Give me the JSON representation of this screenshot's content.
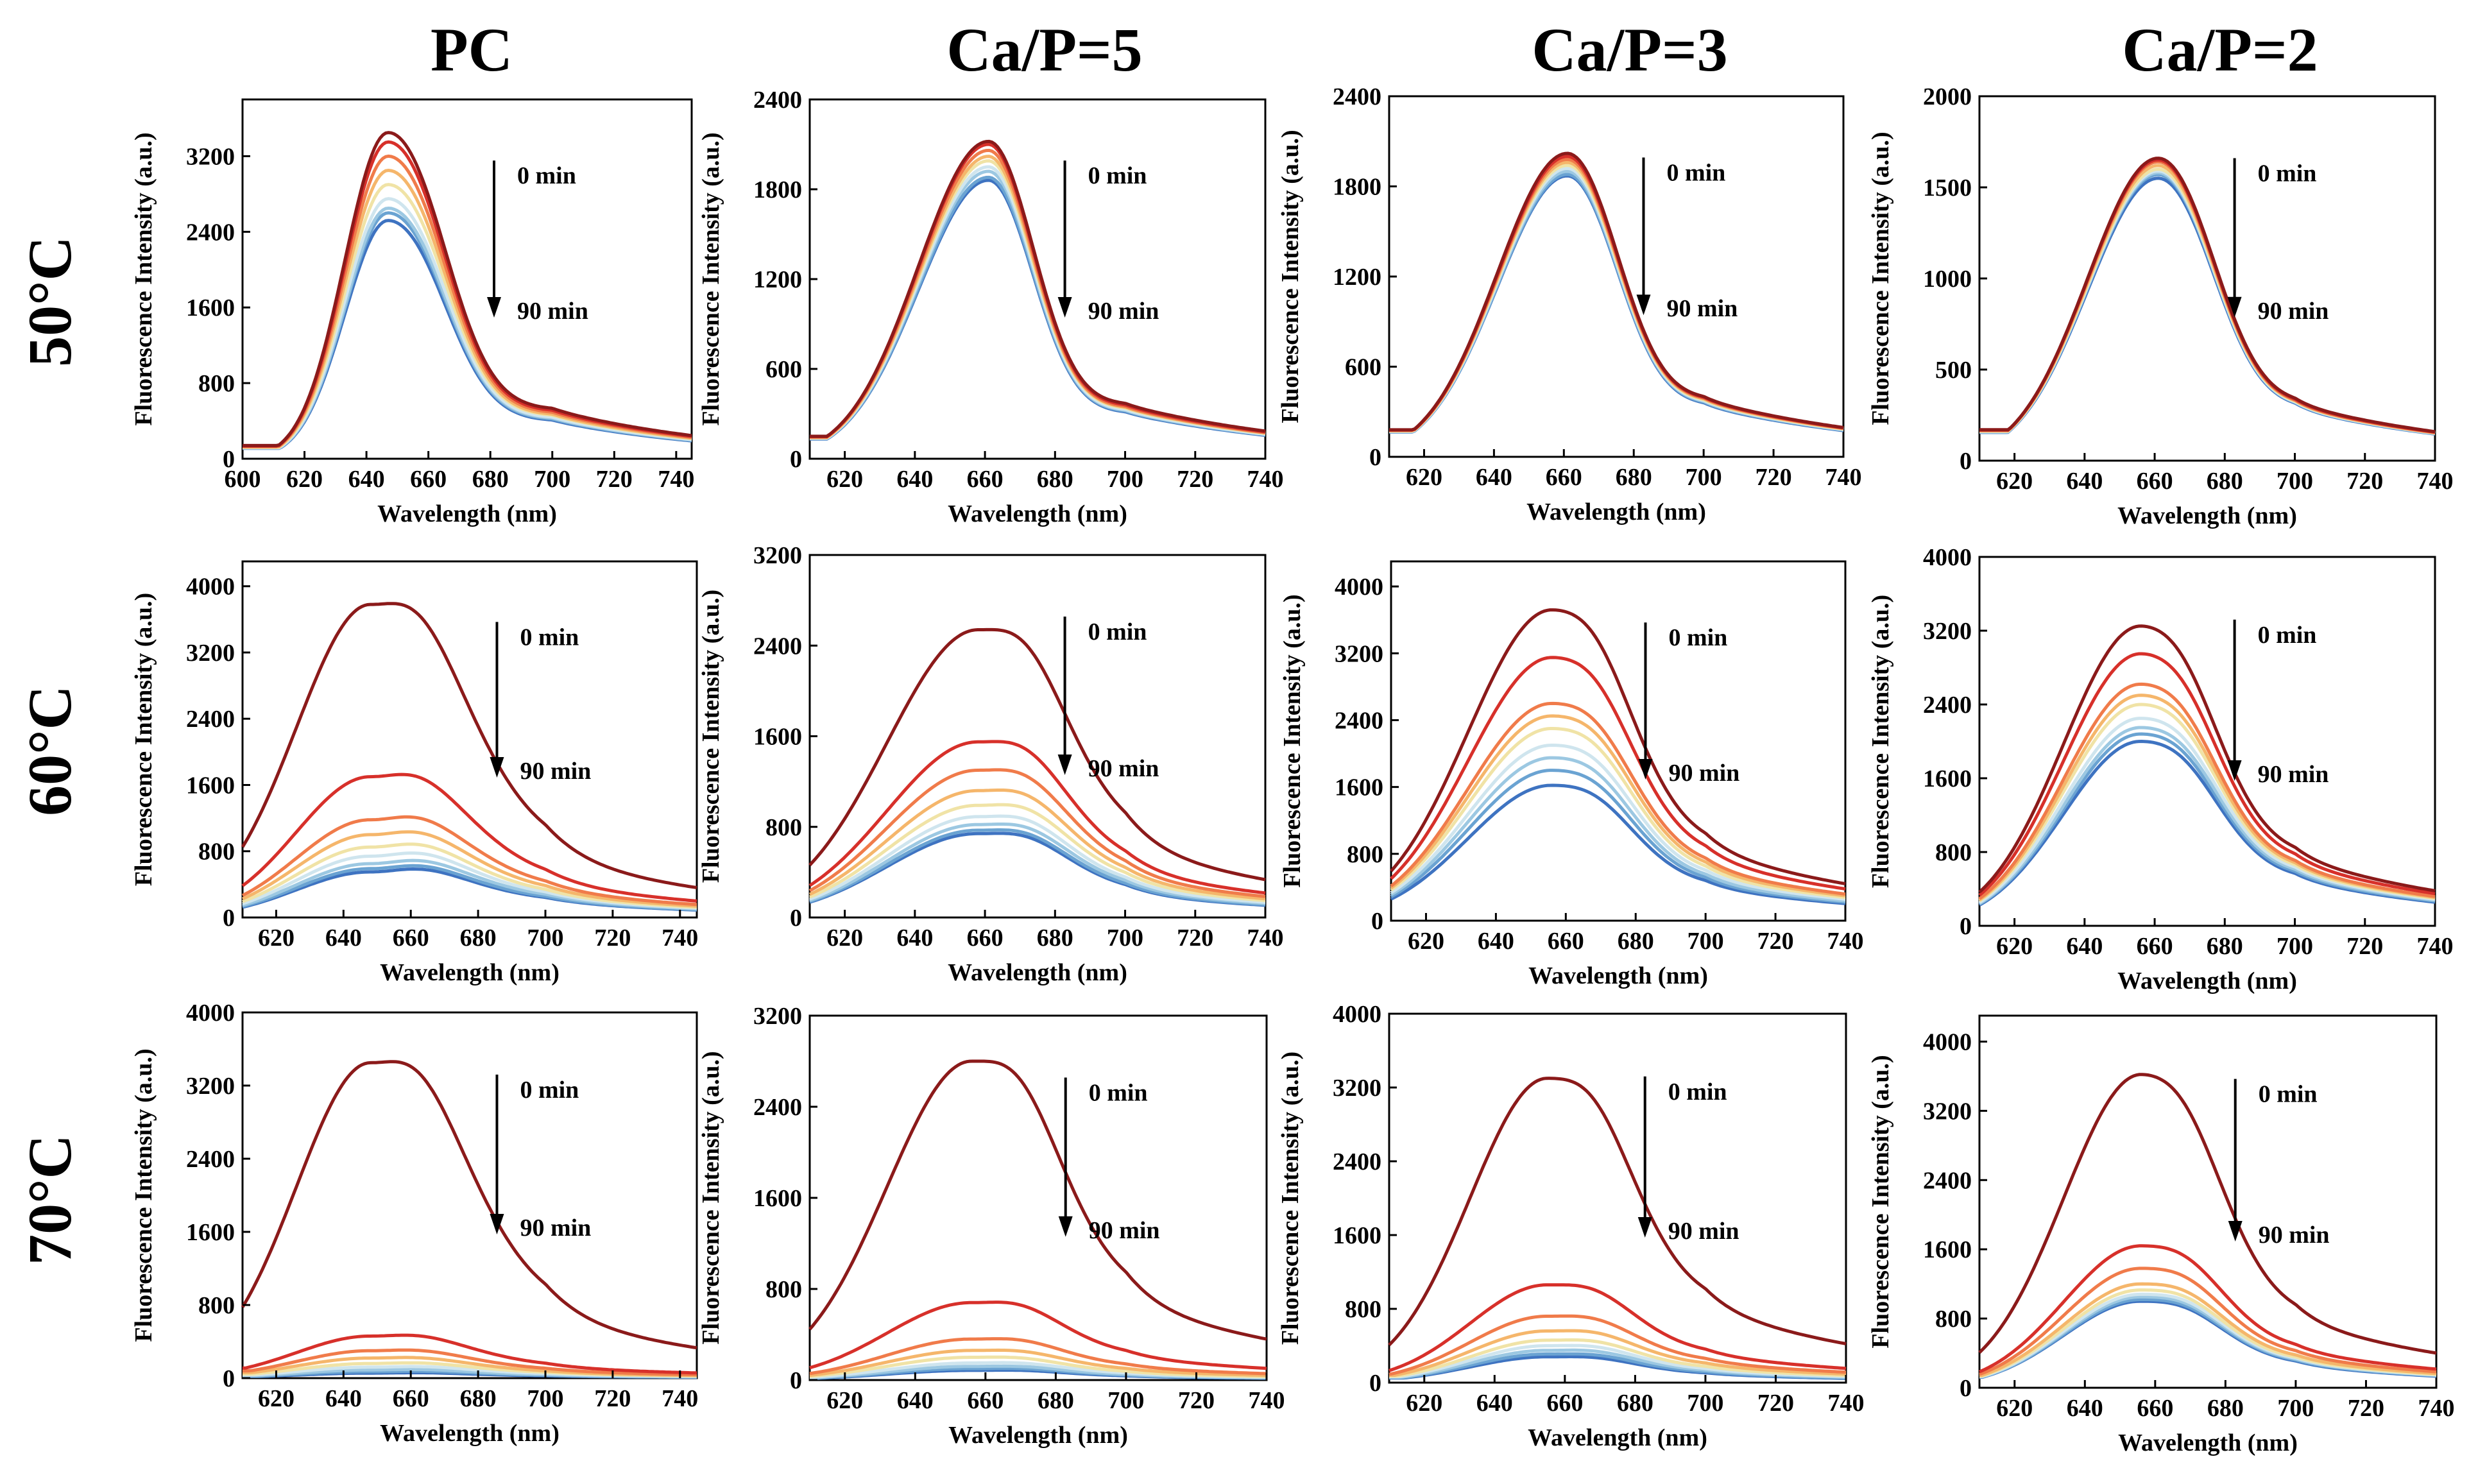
{
  "columns": [
    "PC",
    "Ca/P=5",
    "Ca/P=3",
    "Ca/P=2"
  ],
  "rows": [
    "50°C",
    "60°C",
    "70°C"
  ],
  "series_colors": [
    "#8B1A1A",
    "#D7302A",
    "#F07B4A",
    "#F5B66B",
    "#F0E3A6",
    "#CFE5EE",
    "#9CC8E2",
    "#6AA3D2",
    "#3E73C1"
  ],
  "chart_data": [
    {
      "id": "r1c1",
      "type": "line",
      "title": "",
      "row": "50°C",
      "column": "PC",
      "xlabel": "Wavelength (nm)",
      "ylabel": "Fluorescence Intensity (a.u.)",
      "xlim": [
        600,
        745
      ],
      "ylim": [
        0,
        3800
      ],
      "xticks": [
        600,
        620,
        640,
        660,
        680,
        700,
        720,
        740
      ],
      "yticks": [
        0,
        800,
        1600,
        2400,
        3200
      ],
      "annotation_top": "0 min",
      "annotation_bottom": "90 min",
      "peak_nm": 647,
      "sigma_left": 14,
      "sigma_right": 16,
      "peaks": [
        3450,
        3350,
        3200,
        3050,
        2900,
        2750,
        2650,
        2600,
        2520
      ],
      "tail_700": [
        520,
        500,
        480,
        460,
        450,
        430,
        420,
        410,
        400
      ],
      "base_600": [
        140,
        135,
        130,
        125,
        120,
        118,
        115,
        112,
        110
      ],
      "base_745": [
        90,
        88,
        85,
        82,
        80,
        78,
        76,
        74,
        72
      ]
    },
    {
      "id": "r1c2",
      "type": "line",
      "title": "",
      "row": "50°C",
      "column": "Ca/P=5",
      "xlabel": "Wavelength (nm)",
      "ylabel": "Fluorescence Intensity (a.u.)",
      "xlim": [
        610,
        740
      ],
      "ylim": [
        0,
        2400
      ],
      "xticks": [
        620,
        640,
        660,
        680,
        700,
        720,
        740
      ],
      "yticks": [
        0,
        600,
        1200,
        1800,
        2400
      ],
      "annotation_top": "0 min",
      "annotation_bottom": "90 min",
      "peak_nm": 661,
      "sigma_left": 20,
      "sigma_right": 12,
      "peaks": [
        2120,
        2100,
        2060,
        2020,
        1990,
        1950,
        1920,
        1880,
        1860
      ],
      "tail_700": [
        360,
        350,
        340,
        335,
        330,
        320,
        315,
        310,
        305
      ],
      "base_600": [
        150,
        148,
        145,
        142,
        140,
        138,
        136,
        134,
        132
      ],
      "base_745": [
        110,
        108,
        106,
        104,
        102,
        100,
        98,
        96,
        94
      ]
    },
    {
      "id": "r1c3",
      "type": "line",
      "title": "",
      "row": "50°C",
      "column": "Ca/P=3",
      "xlabel": "Wavelength (nm)",
      "ylabel": "Fluorescence Intensity (a.u.)",
      "xlim": [
        610,
        740
      ],
      "ylim": [
        0,
        2400
      ],
      "xticks": [
        620,
        640,
        660,
        680,
        700,
        720,
        740
      ],
      "yticks": [
        0,
        600,
        1200,
        1800,
        2400
      ],
      "annotation_top": "0 min",
      "annotation_bottom": "90 min",
      "peak_nm": 661,
      "sigma_left": 20,
      "sigma_right": 13,
      "peaks": [
        2020,
        2000,
        1980,
        1960,
        1940,
        1920,
        1900,
        1880,
        1870
      ],
      "tail_700": [
        380,
        375,
        370,
        365,
        360,
        355,
        350,
        345,
        340
      ],
      "base_600": [
        180,
        178,
        176,
        174,
        172,
        170,
        168,
        166,
        165
      ],
      "base_745": [
        110,
        108,
        106,
        104,
        102,
        100,
        98,
        96,
        94
      ]
    },
    {
      "id": "r1c4",
      "type": "line",
      "title": "",
      "row": "50°C",
      "column": "Ca/P=2",
      "xlabel": "Wavelength (nm)",
      "ylabel": "Fluorescence Intensity (a.u.)",
      "xlim": [
        610,
        740
      ],
      "ylim": [
        0,
        2000
      ],
      "xticks": [
        620,
        640,
        660,
        680,
        700,
        720,
        740
      ],
      "yticks": [
        0,
        500,
        1000,
        1500,
        2000
      ],
      "annotation_top": "0 min",
      "annotation_bottom": "90 min",
      "peak_nm": 661,
      "sigma_left": 20,
      "sigma_right": 14,
      "peaks": [
        1660,
        1650,
        1640,
        1620,
        1600,
        1590,
        1580,
        1570,
        1550
      ],
      "tail_700": [
        310,
        305,
        300,
        298,
        295,
        292,
        290,
        288,
        285
      ],
      "base_600": [
        170,
        168,
        166,
        164,
        162,
        160,
        158,
        156,
        155
      ],
      "base_745": [
        100,
        98,
        96,
        94,
        92,
        90,
        88,
        86,
        85
      ]
    },
    {
      "id": "r2c1",
      "type": "line",
      "title": "",
      "row": "60°C",
      "column": "PC",
      "xlabel": "Wavelength (nm)",
      "ylabel": "Fluorescence Intensity (a.u.)",
      "xlim": [
        610,
        745
      ],
      "ylim": [
        0,
        4300
      ],
      "xticks": [
        620,
        640,
        660,
        680,
        700,
        720,
        740
      ],
      "yticks": [
        0,
        800,
        1600,
        2400,
        3200,
        4000
      ],
      "annotation_top": "0 min",
      "annotation_bottom": "90 min",
      "peak_nm": 648,
      "sigma_left": 22,
      "sigma_right": 24,
      "peaks": [
        3780,
        1700,
        1180,
        1000,
        850,
        740,
        650,
        590,
        550
      ],
      "tail_700": [
        760,
        420,
        330,
        290,
        260,
        240,
        220,
        200,
        190
      ],
      "base_600": [
        380,
        230,
        190,
        170,
        150,
        140,
        130,
        120,
        110
      ],
      "base_745": [
        120,
        90,
        80,
        70,
        65,
        60,
        55,
        50,
        45
      ]
    },
    {
      "id": "r2c2",
      "type": "line",
      "title": "",
      "row": "60°C",
      "column": "Ca/P=5",
      "xlabel": "Wavelength (nm)",
      "ylabel": "Fluorescence Intensity (a.u.)",
      "xlim": [
        610,
        740
      ],
      "ylim": [
        0,
        3200
      ],
      "xticks": [
        620,
        640,
        660,
        680,
        700,
        720,
        740
      ],
      "yticks": [
        0,
        800,
        1600,
        2400,
        3200
      ],
      "annotation_top": "0 min",
      "annotation_bottom": "90 min",
      "peak_nm": 658,
      "sigma_left": 26,
      "sigma_right": 20,
      "peaks": [
        2540,
        1550,
        1300,
        1120,
        990,
        890,
        820,
        770,
        740
      ],
      "tail_700": [
        650,
        420,
        360,
        320,
        290,
        260,
        240,
        220,
        210
      ],
      "base_600": [
        240,
        170,
        150,
        140,
        130,
        120,
        110,
        100,
        95
      ],
      "base_745": [
        140,
        100,
        90,
        80,
        75,
        70,
        65,
        60,
        55
      ]
    },
    {
      "id": "r2c3",
      "type": "line",
      "title": "",
      "row": "60°C",
      "column": "Ca/P=3",
      "xlabel": "Wavelength (nm)",
      "ylabel": "Fluorescence Intensity (a.u.)",
      "xlim": [
        610,
        740
      ],
      "ylim": [
        0,
        4300
      ],
      "xticks": [
        620,
        640,
        660,
        680,
        700,
        720,
        740
      ],
      "yticks": [
        0,
        800,
        1600,
        2400,
        3200,
        4000
      ],
      "annotation_top": "0 min",
      "annotation_bottom": "90 min",
      "peak_nm": 656,
      "sigma_left": 24,
      "sigma_right": 18,
      "peaks": [
        3720,
        3150,
        2600,
        2450,
        2300,
        2100,
        1950,
        1800,
        1620
      ],
      "tail_700": [
        860,
        740,
        620,
        580,
        540,
        500,
        460,
        430,
        400
      ],
      "base_600": [
        260,
        230,
        200,
        190,
        180,
        170,
        160,
        150,
        140
      ],
      "base_745": [
        180,
        160,
        140,
        130,
        125,
        120,
        115,
        110,
        100
      ]
    },
    {
      "id": "r2c4",
      "type": "line",
      "title": "",
      "row": "60°C",
      "column": "Ca/P=2",
      "xlabel": "Wavelength (nm)",
      "ylabel": "Fluorescence Intensity (a.u.)",
      "xlim": [
        610,
        740
      ],
      "ylim": [
        0,
        4000
      ],
      "xticks": [
        620,
        640,
        660,
        680,
        700,
        720,
        740
      ],
      "yticks": [
        0,
        800,
        1600,
        2400,
        3200,
        4000
      ],
      "annotation_top": "0 min",
      "annotation_bottom": "90 min",
      "peak_nm": 656,
      "sigma_left": 22,
      "sigma_right": 17,
      "peaks": [
        3250,
        2950,
        2620,
        2500,
        2400,
        2250,
        2150,
        2080,
        2000
      ],
      "tail_700": [
        740,
        680,
        620,
        600,
        580,
        560,
        540,
        520,
        500
      ],
      "base_600": [
        260,
        250,
        240,
        235,
        230,
        225,
        220,
        215,
        210
      ],
      "base_745": [
        160,
        155,
        150,
        148,
        146,
        144,
        142,
        140,
        138
      ]
    },
    {
      "id": "r3c1",
      "type": "line",
      "title": "",
      "row": "70°C",
      "column": "PC",
      "xlabel": "Wavelength (nm)",
      "ylabel": "Fluorescence Intensity (a.u.)",
      "xlim": [
        610,
        745
      ],
      "ylim": [
        0,
        4000
      ],
      "xticks": [
        620,
        640,
        660,
        680,
        700,
        720,
        740
      ],
      "yticks": [
        0,
        800,
        1600,
        2400,
        3200,
        4000
      ],
      "annotation_top": "0 min",
      "annotation_bottom": "90 min",
      "peak_nm": 648,
      "sigma_left": 22,
      "sigma_right": 24,
      "peaks": [
        3450,
        460,
        300,
        220,
        160,
        120,
        90,
        70,
        55
      ],
      "tail_700": [
        700,
        120,
        80,
        60,
        50,
        40,
        30,
        25,
        20
      ],
      "base_600": [
        380,
        110,
        80,
        60,
        45,
        35,
        28,
        22,
        18
      ],
      "base_745": [
        140,
        40,
        30,
        25,
        20,
        16,
        13,
        10,
        8
      ]
    },
    {
      "id": "r3c2",
      "type": "line",
      "title": "",
      "row": "70°C",
      "column": "Ca/P=5",
      "xlabel": "Wavelength (nm)",
      "ylabel": "Fluorescence Intensity (a.u.)",
      "xlim": [
        610,
        740
      ],
      "ylim": [
        0,
        3200
      ],
      "xticks": [
        620,
        640,
        660,
        680,
        700,
        720,
        740
      ],
      "yticks": [
        0,
        800,
        1600,
        2400,
        3200
      ],
      "annotation_top": "0 min",
      "annotation_bottom": "90 min",
      "peak_nm": 656,
      "sigma_left": 24,
      "sigma_right": 20,
      "peaks": [
        2800,
        680,
        360,
        260,
        200,
        150,
        120,
        100,
        85
      ],
      "tail_700": [
        700,
        200,
        110,
        80,
        60,
        50,
        40,
        35,
        30
      ],
      "base_600": [
        200,
        80,
        50,
        40,
        30,
        25,
        20,
        18,
        15
      ],
      "base_745": [
        140,
        50,
        35,
        28,
        22,
        18,
        15,
        12,
        10
      ]
    },
    {
      "id": "r3c3",
      "type": "line",
      "title": "",
      "row": "70°C",
      "column": "Ca/P=3",
      "xlabel": "Wavelength (nm)",
      "ylabel": "Fluorescence Intensity (a.u.)",
      "xlim": [
        610,
        740
      ],
      "ylim": [
        0,
        4000
      ],
      "xticks": [
        620,
        640,
        660,
        680,
        700,
        720,
        740
      ],
      "yticks": [
        0,
        800,
        1600,
        2400,
        3200,
        4000
      ],
      "annotation_top": "0 min",
      "annotation_bottom": "90 min",
      "peak_nm": 655,
      "sigma_left": 22,
      "sigma_right": 19,
      "peaks": [
        3300,
        1060,
        720,
        560,
        460,
        400,
        350,
        310,
        280
      ],
      "tail_700": [
        820,
        300,
        220,
        180,
        150,
        130,
        115,
        100,
        90
      ],
      "base_600": [
        250,
        110,
        90,
        80,
        70,
        65,
        60,
        55,
        50
      ],
      "base_745": [
        160,
        70,
        55,
        48,
        42,
        38,
        34,
        30,
        28
      ]
    },
    {
      "id": "r3c4",
      "type": "line",
      "title": "",
      "row": "70°C",
      "column": "Ca/P=2",
      "xlabel": "Wavelength (nm)",
      "ylabel": "Fluorescence Intensity (a.u.)",
      "xlim": [
        610,
        740
      ],
      "ylim": [
        0,
        4300
      ],
      "xticks": [
        620,
        640,
        660,
        680,
        700,
        720,
        740
      ],
      "yticks": [
        0,
        800,
        1600,
        2400,
        3200,
        4000
      ],
      "annotation_top": "0 min",
      "annotation_bottom": "90 min",
      "peak_nm": 656,
      "sigma_left": 22,
      "sigma_right": 18,
      "peaks": [
        3620,
        1640,
        1380,
        1200,
        1130,
        1080,
        1050,
        1020,
        1000
      ],
      "tail_700": [
        780,
        420,
        360,
        320,
        300,
        290,
        280,
        270,
        260
      ],
      "base_600": [
        220,
        170,
        150,
        140,
        135,
        130,
        128,
        125,
        120
      ],
      "base_745": [
        160,
        110,
        100,
        90,
        88,
        85,
        82,
        80,
        78
      ]
    }
  ]
}
